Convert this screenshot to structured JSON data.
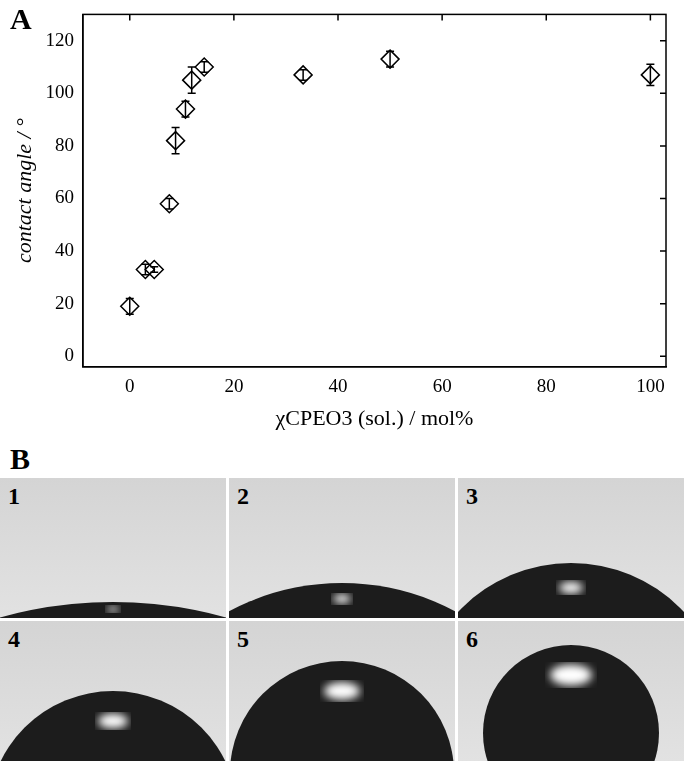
{
  "chart_data": {
    "type": "scatter",
    "panel_label": "A",
    "x_label": "χCPEO3 (sol.) / mol%",
    "y_label": "contact angle / °",
    "series": [
      {
        "color": "#000000",
        "marker": "diamond",
        "x": [
          0,
          3.0,
          4.7,
          7.6,
          8.8,
          10.7,
          11.9,
          14.3,
          33.3,
          50,
          100
        ],
        "values": [
          19,
          33,
          33,
          58,
          82,
          94,
          105,
          110,
          107,
          113,
          107
        ],
        "errors": [
          3,
          2,
          1,
          2,
          5,
          3,
          5,
          2,
          2,
          3,
          4
        ]
      }
    ],
    "xlim": [
      -9,
      103
    ],
    "xticks": [
      0,
      20,
      40,
      60,
      80,
      100
    ],
    "ylim": [
      -4,
      130
    ],
    "yticks": [
      0,
      20,
      40,
      60,
      80,
      100,
      120
    ],
    "grid": false
  },
  "panel_b": {
    "label": "B",
    "image_labels": [
      "1",
      "2",
      "3",
      "4",
      "5",
      "6"
    ]
  }
}
